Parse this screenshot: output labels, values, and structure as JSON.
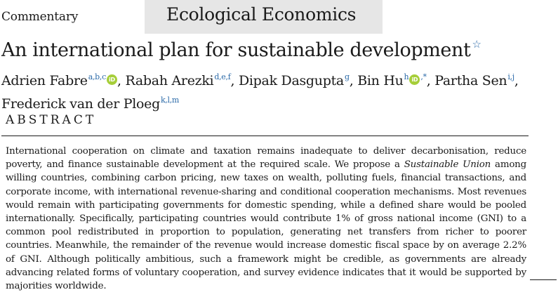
{
  "header": {
    "article_type": "Commentary",
    "journal": "Ecological Economics"
  },
  "article": {
    "title": "An international plan for sustainable development",
    "title_note_marker": "☆"
  },
  "authors": [
    {
      "name": "Adrien Fabre",
      "affiliations": "a,b,c",
      "orcid": true,
      "corresponding": "",
      "sep": ","
    },
    {
      "name": "Rabah Arezki",
      "affiliations": "d,e,f",
      "orcid": false,
      "corresponding": "",
      "sep": ","
    },
    {
      "name": "Dipak Dasgupta",
      "affiliations": "g",
      "orcid": false,
      "corresponding": "",
      "sep": ","
    },
    {
      "name": "Bin Hu",
      "affiliations": "h",
      "orcid": true,
      "corresponding": ",*",
      "sep": ","
    },
    {
      "name": "Partha Sen",
      "affiliations": "i,j",
      "orcid": false,
      "corresponding": "",
      "sep": ","
    },
    {
      "name": "Frederick van der Ploeg",
      "affiliations": "k,l,m",
      "orcid": false,
      "corresponding": "",
      "sep": ""
    }
  ],
  "abstract": {
    "heading": "ABSTRACT",
    "text_before_italic": "International cooperation on climate and taxation remains inadequate to deliver decarbonisation, reduce poverty, and finance sustainable development at the required scale. We propose a ",
    "italic": "Sustainable Union",
    "text_after_italic": " among willing countries, combining carbon pricing, new taxes on wealth, polluting fuels, financial transactions, and corporate income, with international revenue-sharing and conditional cooperation mechanisms. Most revenues would remain with participating governments for domestic spending, while a defined share would be pooled internationally. Specifically, participating countries would contribute 1% of gross national income (GNI) to a common pool redistributed in proportion to population, generating net transfers from richer to poorer countries. Meanwhile, the remainder of the revenue would increase domestic fiscal space by on average 2.2% of GNI. Although politically ambitious, such a framework might be credible, as governments are already advancing related forms of voluntary cooperation, and survey evidence indicates that it would be supported by majorities worldwide."
  },
  "icons": {
    "orcid_glyph": "iD",
    "orcid_color": "#a6ce39",
    "link_color": "#2b6aa8"
  }
}
